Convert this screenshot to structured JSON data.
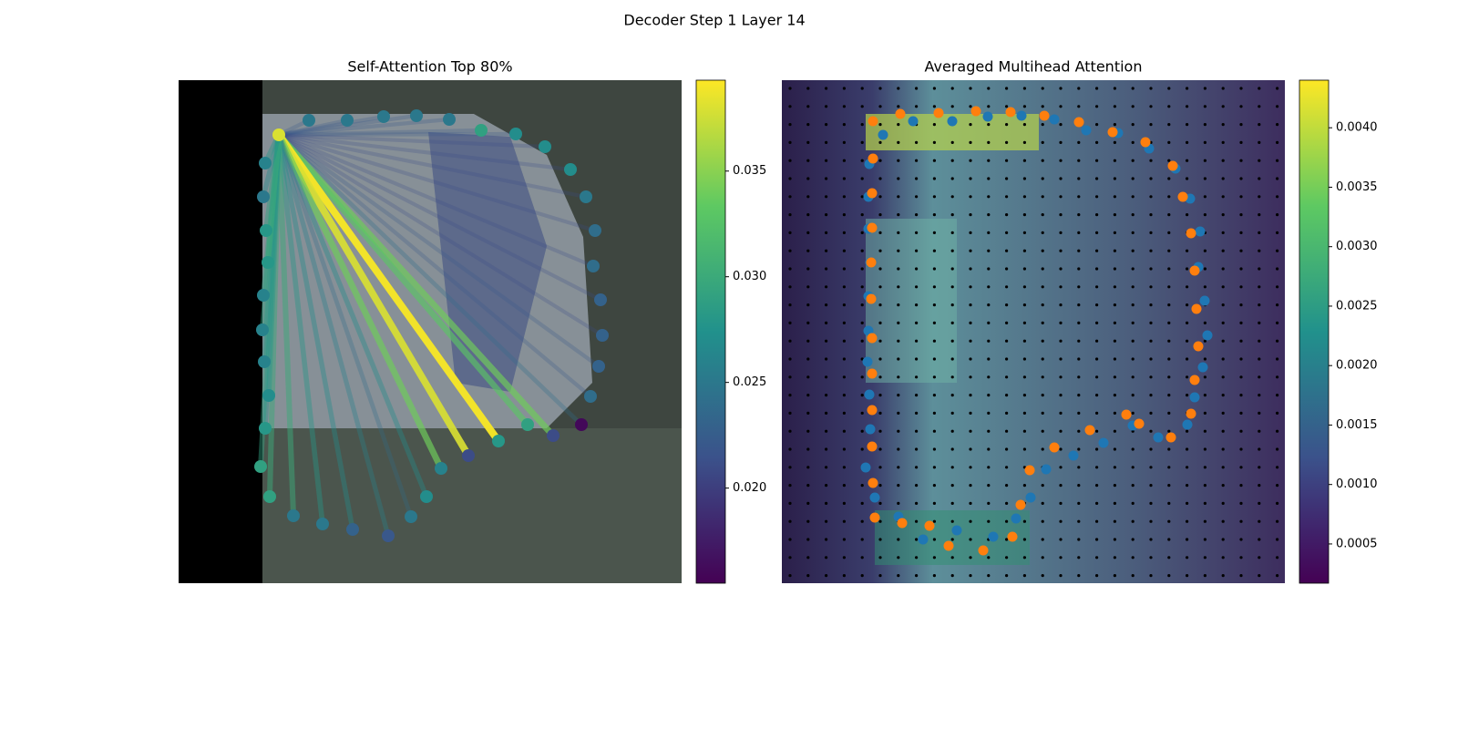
{
  "title": "Decoder Step 1 Layer 14",
  "chart_data": [
    {
      "type": "attention-lines",
      "title": "Self-Attention Top 80%",
      "xlim": [
        0,
        552
      ],
      "ylim": [
        552,
        0
      ],
      "source": {
        "x": 110,
        "y": 60,
        "value": 0.038
      },
      "x": [
        143,
        185,
        225,
        261,
        297,
        332,
        370,
        402,
        430,
        447,
        457,
        455,
        463,
        465,
        461,
        452,
        442,
        411,
        383,
        351,
        318,
        288,
        272,
        255,
        230,
        191,
        158,
        126,
        100,
        90,
        95,
        99,
        94,
        92,
        93,
        98,
        96,
        93,
        95
      ],
      "values": [
        44,
        44,
        40,
        39,
        43,
        55,
        59,
        73,
        98,
        128,
        165,
        204,
        241,
        280,
        314,
        347,
        378,
        390,
        378,
        396,
        412,
        426,
        457,
        479,
        500,
        493,
        487,
        478,
        457,
        424,
        382,
        346,
        309,
        274,
        236,
        200,
        165,
        128,
        91
      ],
      "colors": [
        0.025,
        0.025,
        0.025,
        0.025,
        0.025,
        0.029,
        0.027,
        0.027,
        0.027,
        0.025,
        0.024,
        0.024,
        0.023,
        0.023,
        0.023,
        0.024,
        0.016,
        0.021,
        0.029,
        0.028,
        0.021,
        0.026,
        0.027,
        0.025,
        0.022,
        0.023,
        0.025,
        0.025,
        0.029,
        0.029,
        0.028,
        0.027,
        0.026,
        0.026,
        0.026,
        0.028,
        0.028,
        0.025,
        0.026
      ],
      "weights": [
        0.022,
        0.022,
        0.022,
        0.022,
        0.022,
        0.022,
        0.022,
        0.021,
        0.021,
        0.021,
        0.021,
        0.021,
        0.021,
        0.021,
        0.022,
        0.022,
        0.024,
        0.034,
        0.033,
        0.039,
        0.038,
        0.034,
        0.027,
        0.024,
        0.026,
        0.027,
        0.028,
        0.03,
        0.03,
        0.029,
        0.028,
        0.028,
        0.028,
        0.029,
        0.029,
        0.03,
        0.029,
        0.027,
        0.028
      ],
      "clim": [
        0.0155,
        0.0393
      ],
      "cticks": [
        {
          "value": 0.02,
          "label": "0.020"
        },
        0.025,
        {
          "value": 0.03,
          "label": "0.030"
        },
        0.035
      ]
    },
    {
      "type": "scatter",
      "title": "Averaged Multihead Attention",
      "xlim": [
        0,
        552
      ],
      "ylim": [
        552,
        0
      ],
      "series": [
        {
          "color": "#1f77b4",
          "x": [
            111,
            144,
            187,
            226,
            263,
            299,
            334,
            369,
            403,
            432,
            448,
            459,
            457,
            464,
            467,
            462,
            453,
            445,
            413,
            385,
            353,
            320,
            290,
            273,
            257,
            232,
            192,
            155,
            128,
            102,
            92,
            97,
            96,
            94,
            95,
            95,
            97,
            95,
            95,
            96
          ],
          "values": [
            60,
            45,
            45,
            40,
            39,
            43,
            55,
            58,
            75,
            97,
            130,
            166,
            205,
            242,
            280,
            315,
            348,
            378,
            392,
            379,
            398,
            412,
            427,
            458,
            481,
            501,
            494,
            504,
            479,
            458,
            425,
            383,
            345,
            309,
            275,
            237,
            200,
            163,
            128,
            92
          ]
        },
        {
          "color": "#ff7f0e",
          "x": [
            100,
            130,
            172,
            213,
            251,
            288,
            326,
            363,
            399,
            429,
            440,
            449,
            453,
            455,
            457,
            453,
            449,
            427,
            392,
            378,
            338,
            299,
            272,
            262,
            253,
            221,
            183,
            162,
            132,
            102,
            100,
            99,
            99,
            99,
            99,
            98,
            98,
            99,
            99,
            100
          ],
          "values": [
            45,
            37,
            36,
            34,
            35,
            39,
            46,
            57,
            68,
            94,
            128,
            168,
            209,
            251,
            292,
            329,
            366,
            392,
            377,
            367,
            384,
            403,
            428,
            466,
            501,
            516,
            511,
            489,
            486,
            480,
            442,
            402,
            362,
            322,
            283,
            240,
            200,
            162,
            124,
            86
          ]
        }
      ],
      "clim": [
        0.00017,
        0.0044
      ],
      "cticks": [
        0.0005,
        {
          "value": 0.001,
          "label": "0.0010"
        },
        0.0015,
        {
          "value": 0.002,
          "label": "0.0020"
        },
        0.0025,
        {
          "value": 0.003,
          "label": "0.0030"
        },
        0.0035,
        {
          "value": 0.004,
          "label": "0.0040"
        }
      ]
    }
  ]
}
